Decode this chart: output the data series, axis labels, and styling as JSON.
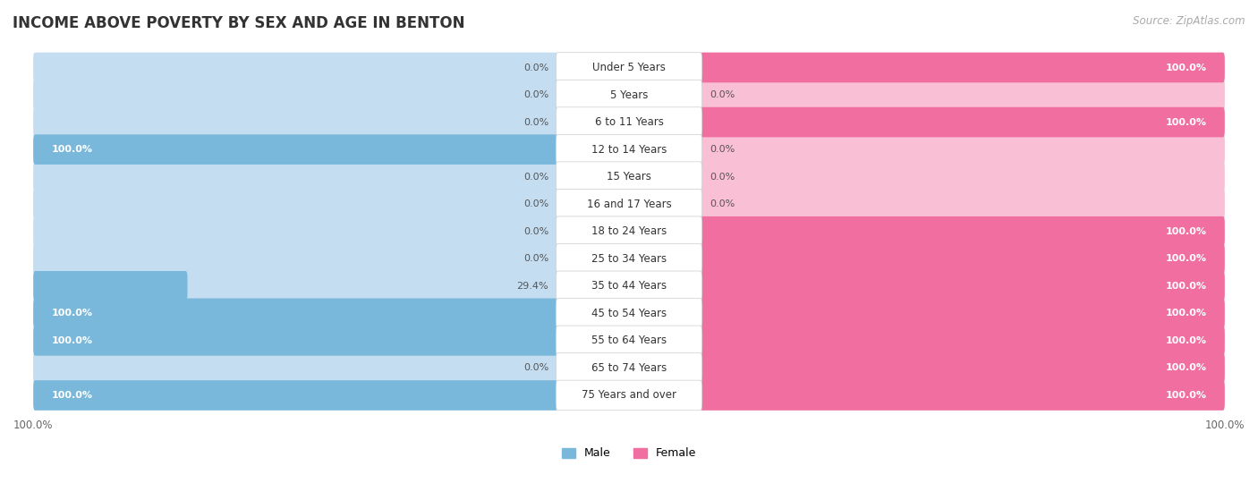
{
  "title": "INCOME ABOVE POVERTY BY SEX AND AGE IN BENTON",
  "source": "Source: ZipAtlas.com",
  "categories": [
    "Under 5 Years",
    "5 Years",
    "6 to 11 Years",
    "12 to 14 Years",
    "15 Years",
    "16 and 17 Years",
    "18 to 24 Years",
    "25 to 34 Years",
    "35 to 44 Years",
    "45 to 54 Years",
    "55 to 64 Years",
    "65 to 74 Years",
    "75 Years and over"
  ],
  "male_values": [
    0.0,
    0.0,
    0.0,
    100.0,
    0.0,
    0.0,
    0.0,
    0.0,
    29.4,
    100.0,
    100.0,
    0.0,
    100.0
  ],
  "female_values": [
    100.0,
    0.0,
    100.0,
    0.0,
    0.0,
    0.0,
    100.0,
    100.0,
    100.0,
    100.0,
    100.0,
    100.0,
    100.0
  ],
  "male_color": "#7ab8db",
  "female_color": "#f06fa0",
  "male_color_light": "#c5ddf0",
  "female_color_light": "#f9bfd4",
  "row_bg_color_odd": "#f0f0f0",
  "row_bg_color_even": "#e8e8e8",
  "title_fontsize": 12,
  "label_fontsize": 8.5,
  "value_fontsize": 8
}
